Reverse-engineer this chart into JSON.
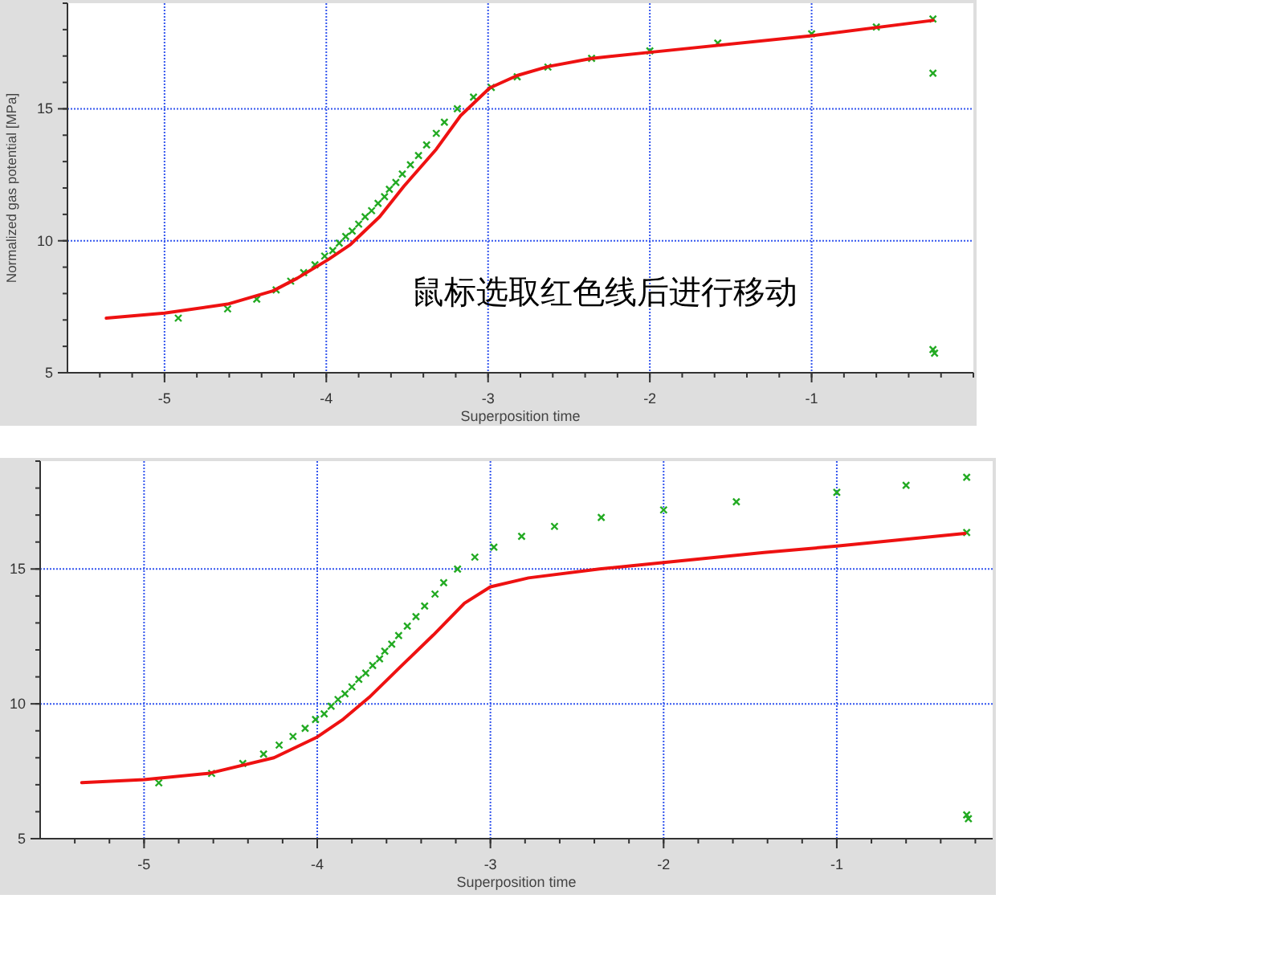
{
  "chart_data": [
    {
      "type": "scatter",
      "xlabel": "Superposition time",
      "ylabel": "Normalized gas potential [MPa]",
      "xlim": [
        -5.6,
        0
      ],
      "ylim": [
        5,
        19
      ],
      "xticks": [
        -5,
        -4,
        -3,
        -2,
        -1
      ],
      "yticks": [
        5,
        10,
        15
      ],
      "grid": true,
      "annotations": [
        "鼠标选取红色线后进行移动"
      ],
      "series": [
        {
          "type": "scatter",
          "marker": "cross",
          "color": "#22aa22",
          "x": [
            -4.915,
            -4.61,
            -4.43,
            -4.31,
            -4.22,
            -4.14,
            -4.07,
            -4.01,
            -3.96,
            -3.92,
            -3.88,
            -3.84,
            -3.8,
            -3.76,
            -3.72,
            -3.68,
            -3.64,
            -3.61,
            -3.57,
            -3.53,
            -3.48,
            -3.43,
            -3.38,
            -3.32,
            -3.27,
            -3.19,
            -3.09,
            -2.98,
            -2.82,
            -2.63,
            -2.36,
            -2.0,
            -1.58,
            -1.0,
            -0.6,
            -0.25,
            -0.25,
            -0.25,
            -0.24
          ],
          "values": [
            7.07,
            7.42,
            7.79,
            8.14,
            8.47,
            8.79,
            9.09,
            9.42,
            9.63,
            9.91,
            10.16,
            10.37,
            10.63,
            10.91,
            11.14,
            11.42,
            11.67,
            11.95,
            12.21,
            12.53,
            12.88,
            13.23,
            13.63,
            14.07,
            14.49,
            15.0,
            15.44,
            15.81,
            16.21,
            16.58,
            16.91,
            17.19,
            17.49,
            17.84,
            18.1,
            18.4,
            16.35,
            5.88,
            5.74
          ]
        },
        {
          "type": "line",
          "color": "#ee1111",
          "x": [
            -5.36,
            -5.0,
            -4.61,
            -4.33,
            -4.18,
            -3.99,
            -3.85,
            -3.67,
            -3.52,
            -3.32,
            -3.17,
            -2.99,
            -2.82,
            -2.63,
            -2.36,
            -2.0,
            -1.0,
            -0.25
          ],
          "values": [
            7.07,
            7.26,
            7.6,
            8.1,
            8.58,
            9.28,
            9.86,
            10.91,
            12.07,
            13.47,
            14.74,
            15.79,
            16.26,
            16.6,
            16.91,
            17.14,
            17.77,
            18.35
          ]
        }
      ]
    },
    {
      "type": "scatter",
      "xlabel": "Superposition time",
      "xlim": [
        -5.6,
        -0.1
      ],
      "ylim": [
        5,
        19
      ],
      "xticks": [
        -5,
        -4,
        -3,
        -2,
        -1
      ],
      "yticks": [
        5,
        10,
        15
      ],
      "grid": true,
      "series": [
        {
          "type": "scatter",
          "marker": "cross",
          "color": "#22aa22",
          "x": [
            -4.915,
            -4.61,
            -4.43,
            -4.31,
            -4.22,
            -4.14,
            -4.07,
            -4.01,
            -3.96,
            -3.92,
            -3.88,
            -3.84,
            -3.8,
            -3.76,
            -3.72,
            -3.68,
            -3.64,
            -3.61,
            -3.57,
            -3.53,
            -3.48,
            -3.43,
            -3.38,
            -3.32,
            -3.27,
            -3.19,
            -3.09,
            -2.98,
            -2.82,
            -2.63,
            -2.36,
            -2.0,
            -1.58,
            -1.0,
            -0.6,
            -0.25,
            -0.25,
            -0.25,
            -0.24
          ],
          "values": [
            7.07,
            7.42,
            7.79,
            8.14,
            8.47,
            8.79,
            9.09,
            9.42,
            9.63,
            9.91,
            10.16,
            10.37,
            10.63,
            10.91,
            11.14,
            11.42,
            11.67,
            11.95,
            12.21,
            12.53,
            12.88,
            13.23,
            13.63,
            14.07,
            14.49,
            15.0,
            15.44,
            15.81,
            16.21,
            16.58,
            16.91,
            17.19,
            17.49,
            17.84,
            18.1,
            18.4,
            16.35,
            5.88,
            5.74
          ]
        },
        {
          "type": "line",
          "color": "#ee1111",
          "x": [
            -5.36,
            -5.0,
            -4.62,
            -4.25,
            -4.0,
            -3.85,
            -3.7,
            -3.52,
            -3.33,
            -3.15,
            -3.0,
            -2.78,
            -2.37,
            -2.0,
            -1.42,
            -1.0,
            -0.26
          ],
          "values": [
            7.08,
            7.19,
            7.43,
            8.0,
            8.77,
            9.43,
            10.24,
            11.37,
            12.55,
            13.73,
            14.34,
            14.67,
            15.0,
            15.24,
            15.61,
            15.85,
            16.32
          ]
        }
      ]
    }
  ]
}
